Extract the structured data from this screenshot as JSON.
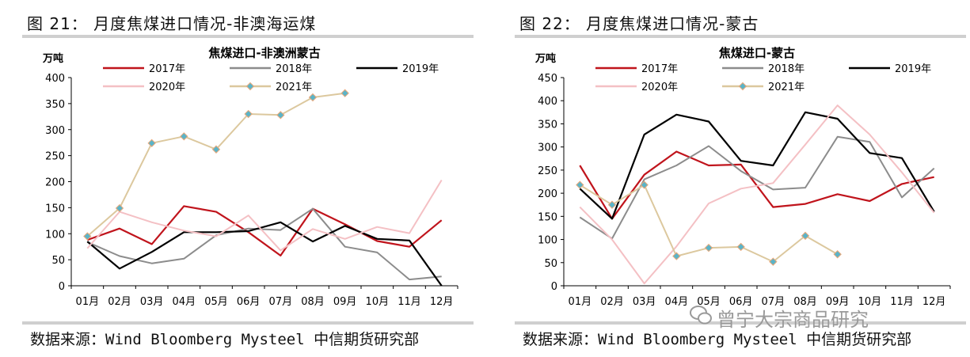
{
  "colors": {
    "2017": "#c0141c",
    "2018": "#8c8c8c",
    "2019": "#000000",
    "2020": "#f4c0c4",
    "2021": "#dcc89e",
    "marker": "#5ab4c8"
  },
  "panels": [
    {
      "fig_title": "图 21：  月度焦煤进口情况-非澳海运煤",
      "source": "数据来源：Wind Bloomberg Mysteel 中信期货研究部"
    },
    {
      "fig_title": "图 22：  月度焦煤进口情况-蒙古",
      "source": "数据来源：Wind Bloomberg Mysteel 中信期货研究部"
    }
  ],
  "watermark": "曾宁大宗商品研究",
  "chart_data": [
    {
      "type": "line",
      "title": "焦煤进口-非澳洲蒙古",
      "ylabel": "万吨",
      "ylim": [
        0,
        400
      ],
      "yticks": [
        0,
        50,
        100,
        150,
        200,
        250,
        300,
        350,
        400
      ],
      "categories": [
        "01月",
        "02月",
        "03月",
        "04月",
        "05月",
        "06月",
        "07月",
        "08月",
        "09月",
        "10月",
        "11月",
        "12月"
      ],
      "legend": "top",
      "series": [
        {
          "name": "2017年",
          "key": "2017",
          "values": [
            88,
            110,
            80,
            153,
            142,
            103,
            58,
            148,
            118,
            86,
            75,
            126
          ]
        },
        {
          "name": "2018年",
          "key": "2018",
          "values": [
            84,
            57,
            43,
            52,
            97,
            110,
            107,
            148,
            75,
            64,
            12,
            18
          ]
        },
        {
          "name": "2019年",
          "key": "2019",
          "values": [
            85,
            33,
            65,
            103,
            103,
            105,
            122,
            85,
            115,
            90,
            87,
            0
          ]
        },
        {
          "name": "2020年",
          "key": "2020",
          "values": [
            72,
            142,
            122,
            106,
            95,
            135,
            68,
            109,
            90,
            113,
            101,
            203
          ]
        },
        {
          "name": "2021年",
          "key": "2021",
          "marker": true,
          "values": [
            95,
            149,
            274,
            287,
            262,
            330,
            328,
            362,
            370,
            null,
            null,
            null
          ]
        }
      ]
    },
    {
      "type": "line",
      "title": "焦煤进口-蒙古",
      "ylabel": "万吨",
      "ylim": [
        0,
        450
      ],
      "yticks": [
        0,
        50,
        100,
        150,
        200,
        250,
        300,
        350,
        400,
        450
      ],
      "categories": [
        "01月",
        "02月",
        "03月",
        "04月",
        "05月",
        "06月",
        "07月",
        "08月",
        "09月",
        "10月",
        "11月",
        "12月"
      ],
      "legend": "top",
      "series": [
        {
          "name": "2017年",
          "key": "2017",
          "values": [
            260,
            145,
            240,
            290,
            260,
            262,
            170,
            177,
            198,
            183,
            220,
            235
          ]
        },
        {
          "name": "2018年",
          "key": "2018",
          "values": [
            148,
            102,
            230,
            260,
            302,
            248,
            208,
            212,
            322,
            311,
            191,
            254
          ]
        },
        {
          "name": "2019年",
          "key": "2019",
          "values": [
            210,
            145,
            327,
            370,
            355,
            270,
            260,
            375,
            361,
            287,
            276,
            160
          ]
        },
        {
          "name": "2020年",
          "key": "2020",
          "values": [
            170,
            100,
            5,
            85,
            178,
            210,
            222,
            305,
            390,
            327,
            245,
            158
          ]
        },
        {
          "name": "2021年",
          "key": "2021",
          "marker": true,
          "values": [
            218,
            175,
            218,
            64,
            82,
            84,
            52,
            108,
            68,
            null,
            null,
            null
          ]
        }
      ]
    }
  ]
}
